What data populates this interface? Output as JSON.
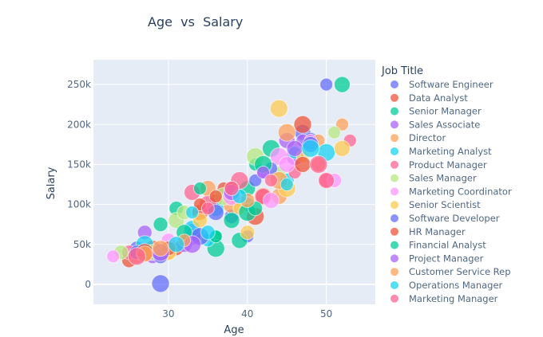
{
  "chart_data": {
    "type": "scatter",
    "title": "Age  vs  Salary",
    "xlabel": "Age",
    "ylabel": "Salary",
    "xlim": [
      20.5,
      56.2
    ],
    "ylim": [
      -25000,
      281000
    ],
    "xticks": [
      30,
      40,
      50
    ],
    "xtick_labels": [
      "30",
      "40",
      "50"
    ],
    "yticks": [
      0,
      50000,
      100000,
      150000,
      200000,
      250000
    ],
    "ytick_labels": [
      "0",
      "50k",
      "100k",
      "150k",
      "200k",
      "250k"
    ],
    "grid": true,
    "background": "#E5ECF6",
    "legend": {
      "title": "Job Title",
      "placement": "right"
    },
    "series": [
      {
        "name": "Software Engineer",
        "color": "#636EFA",
        "points": [
          [
            50,
            250000
          ],
          [
            29,
            1000
          ],
          [
            47,
            190000
          ],
          [
            26,
            45000
          ],
          [
            40,
            60000
          ],
          [
            33,
            65000
          ],
          [
            48,
            180000
          ],
          [
            38,
            85000
          ]
        ]
      },
      {
        "name": "Data Analyst",
        "color": "#EF553B",
        "points": [
          [
            47,
            200000
          ],
          [
            34,
            90000
          ],
          [
            25,
            30000
          ],
          [
            37,
            120000
          ],
          [
            42,
            110000
          ],
          [
            28,
            45000
          ],
          [
            31,
            45000
          ],
          [
            36,
            105000
          ]
        ]
      },
      {
        "name": "Senior Manager",
        "color": "#00CC96",
        "points": [
          [
            52,
            250000
          ],
          [
            29,
            75000
          ],
          [
            36,
            60000
          ],
          [
            36,
            45000
          ],
          [
            40,
            120000
          ],
          [
            31,
            95000
          ],
          [
            41,
            150000
          ],
          [
            43,
            170000
          ],
          [
            39,
            55000
          ]
        ]
      },
      {
        "name": "Sales Associate",
        "color": "#AB63FA",
        "points": [
          [
            27,
            65000
          ],
          [
            47,
            180000
          ],
          [
            33,
            60000
          ],
          [
            45,
            180000
          ],
          [
            28,
            35000
          ],
          [
            42,
            140000
          ],
          [
            46,
            160000
          ],
          [
            32,
            50000
          ]
        ]
      },
      {
        "name": "Director",
        "color": "#FFA15A",
        "points": [
          [
            52,
            200000
          ],
          [
            45,
            190000
          ],
          [
            44,
            110000
          ],
          [
            30,
            40000
          ],
          [
            49,
            180000
          ],
          [
            38,
            100000
          ],
          [
            35,
            120000
          ],
          [
            26,
            35000
          ]
        ]
      },
      {
        "name": "Marketing Analyst",
        "color": "#19D3F3",
        "points": [
          [
            27,
            50000
          ],
          [
            36,
            95000
          ],
          [
            40,
            100000
          ],
          [
            46,
            165000
          ],
          [
            50,
            165000
          ],
          [
            33,
            70000
          ],
          [
            45,
            130000
          ],
          [
            35,
            55000
          ]
        ]
      },
      {
        "name": "Product Manager",
        "color": "#FF6692",
        "points": [
          [
            33,
            115000
          ],
          [
            50,
            130000
          ],
          [
            53,
            180000
          ],
          [
            35,
            100000
          ],
          [
            42,
            110000
          ],
          [
            25,
            40000
          ],
          [
            46,
            140000
          ],
          [
            39,
            130000
          ]
        ]
      },
      {
        "name": "Sales Manager",
        "color": "#B6E880",
        "points": [
          [
            24,
            40000
          ],
          [
            51,
            190000
          ],
          [
            41,
            160000
          ],
          [
            31,
            80000
          ],
          [
            32,
            90000
          ],
          [
            44,
            140000
          ],
          [
            37,
            110000
          ],
          [
            28,
            40000
          ]
        ]
      },
      {
        "name": "Marketing Coordinator",
        "color": "#FF97FF",
        "points": [
          [
            23,
            35000
          ],
          [
            44,
            160000
          ],
          [
            45,
            150000
          ],
          [
            51,
            130000
          ],
          [
            48,
            180000
          ],
          [
            38,
            110000
          ],
          [
            43,
            105000
          ],
          [
            30,
            55000
          ]
        ]
      },
      {
        "name": "Senior Scientist",
        "color": "#FECB52",
        "points": [
          [
            44,
            220000
          ],
          [
            52,
            170000
          ],
          [
            40,
            65000
          ],
          [
            39,
            95000
          ],
          [
            45,
            120000
          ],
          [
            30,
            40000
          ],
          [
            34,
            80000
          ],
          [
            47,
            160000
          ]
        ]
      },
      {
        "name": "Software Developer",
        "color": "#636EFA",
        "points": [
          [
            48,
            175000
          ],
          [
            26,
            40000
          ],
          [
            41,
            130000
          ],
          [
            34,
            60000
          ],
          [
            36,
            90000
          ],
          [
            29,
            35000
          ],
          [
            43,
            145000
          ]
        ]
      },
      {
        "name": "HR Manager",
        "color": "#EF553B",
        "points": [
          [
            38,
            120000
          ],
          [
            34,
            100000
          ],
          [
            41,
            85000
          ],
          [
            47,
            150000
          ],
          [
            30,
            45000
          ],
          [
            36,
            110000
          ],
          [
            27,
            40000
          ]
        ]
      },
      {
        "name": "Financial Analyst",
        "color": "#00CC96",
        "points": [
          [
            36,
            60000
          ],
          [
            40,
            90000
          ],
          [
            32,
            65000
          ],
          [
            41,
            95000
          ],
          [
            34,
            120000
          ],
          [
            42,
            150000
          ],
          [
            38,
            80000
          ]
        ]
      },
      {
        "name": "Project Manager",
        "color": "#AB63FA",
        "points": [
          [
            33,
            50000
          ],
          [
            46,
            170000
          ],
          [
            49,
            150000
          ],
          [
            42,
            140000
          ],
          [
            29,
            40000
          ],
          [
            38,
            115000
          ]
        ]
      },
      {
        "name": "Customer Service Rep",
        "color": "#FFA15A",
        "points": [
          [
            29,
            45000
          ],
          [
            49,
            150000
          ],
          [
            32,
            55000
          ],
          [
            44,
            130000
          ],
          [
            27,
            38000
          ],
          [
            40,
            105000
          ]
        ]
      },
      {
        "name": "Operations Manager",
        "color": "#19D3F3",
        "points": [
          [
            35,
            65000
          ],
          [
            45,
            125000
          ],
          [
            48,
            170000
          ],
          [
            31,
            50000
          ],
          [
            39,
            110000
          ],
          [
            33,
            90000
          ]
        ]
      },
      {
        "name": "Marketing Manager",
        "color": "#FF6692",
        "points": [
          [
            35,
            95000
          ],
          [
            49,
            150000
          ],
          [
            50,
            130000
          ],
          [
            38,
            120000
          ],
          [
            43,
            130000
          ],
          [
            26,
            35000
          ]
        ]
      }
    ]
  }
}
